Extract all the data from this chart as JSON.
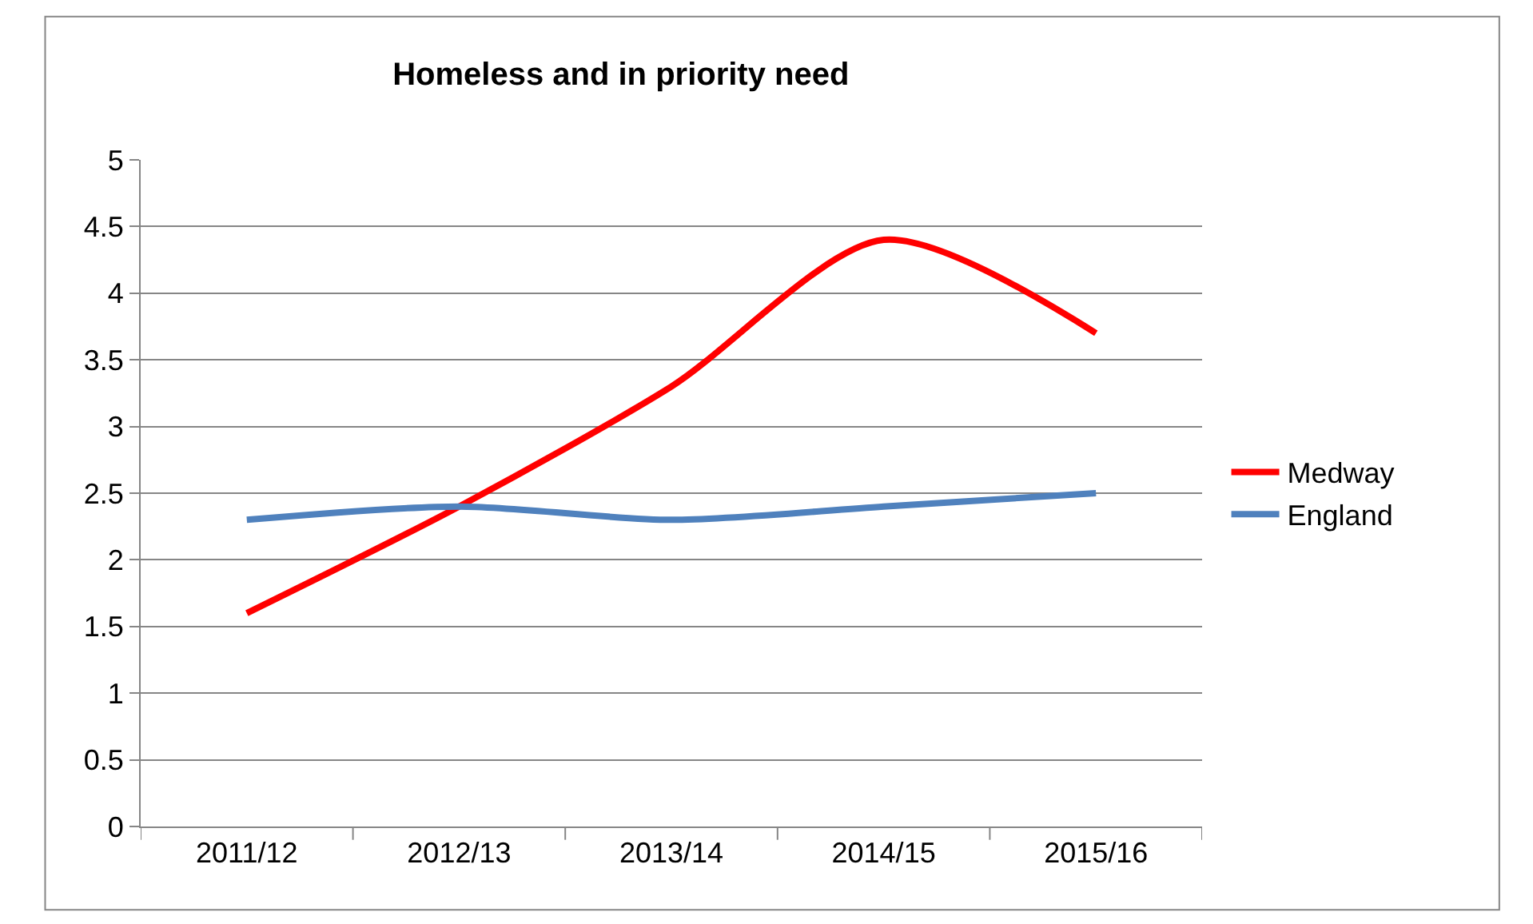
{
  "chart_data": {
    "type": "line",
    "title": "Homeless and in priority need",
    "categories": [
      "2011/12",
      "2012/13",
      "2013/14",
      "2014/15",
      "2015/16"
    ],
    "series": [
      {
        "name": "Medway",
        "color": "#ff0000",
        "values": [
          1.6,
          2.4,
          3.3,
          4.4,
          3.7
        ]
      },
      {
        "name": "England",
        "color": "#4f81bd",
        "values": [
          2.3,
          2.4,
          2.3,
          2.4,
          2.5
        ]
      }
    ],
    "ylim": [
      0,
      5
    ],
    "yticks": [
      0,
      0.5,
      1,
      1.5,
      2,
      2.5,
      3,
      3.5,
      4,
      4.5,
      5
    ],
    "grid": "y",
    "legend": "right",
    "marker": "none",
    "line_style": "solid"
  }
}
